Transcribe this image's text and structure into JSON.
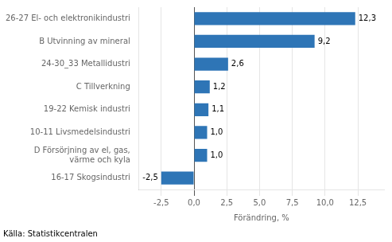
{
  "chart_data": {
    "type": "bar",
    "orientation": "horizontal",
    "categories": [
      "16-17 Skogsindustri",
      "D Försörjning av el, gas,\nvärme och kyla",
      "10-11 Livsmedelsindustri",
      "19-22 Kemisk industri",
      "C Tillverkning",
      "24-30_33 Metallidustri",
      "B Utvinning av mineral",
      "26-27 El- och elektronikindustri"
    ],
    "values": [
      -2.5,
      1.0,
      1.0,
      1.1,
      1.2,
      2.6,
      9.2,
      12.3
    ],
    "value_labels": [
      "-2,5",
      "1,0",
      "1,0",
      "1,1",
      "1,2",
      "2,6",
      "9,2",
      "12,3"
    ],
    "data_labels": true,
    "color": "#2E75B6",
    "xlabel": "Förändring, %",
    "xlim": [
      -4.2,
      14.5
    ],
    "xticks": [
      {
        "value": -2.5,
        "label": "-2,5"
      },
      {
        "value": 0.0,
        "label": "0,0"
      },
      {
        "value": 2.5,
        "label": "2,5"
      },
      {
        "value": 5.0,
        "label": "5,0"
      },
      {
        "value": 7.5,
        "label": "7,5"
      },
      {
        "value": 10.0,
        "label": "10,0"
      },
      {
        "value": 12.5,
        "label": "12,5"
      }
    ],
    "grid": true,
    "annotations": [
      "Källa: Statistikcentralen"
    ]
  }
}
